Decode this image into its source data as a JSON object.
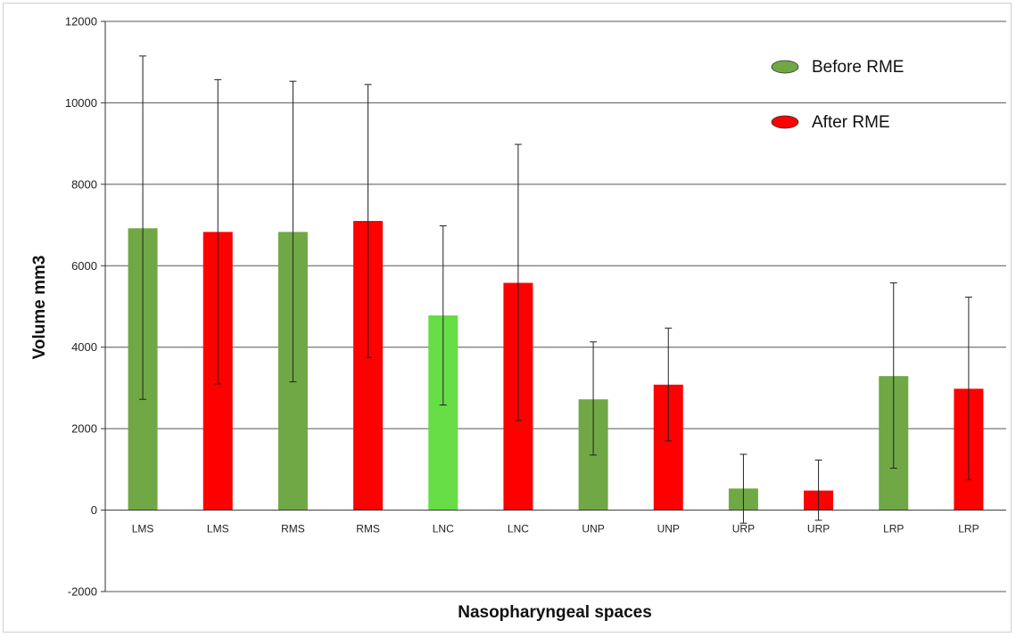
{
  "chart_data": {
    "type": "bar",
    "title": "",
    "xlabel": "Nasopharyngeal spaces",
    "ylabel": "Volume mm3",
    "ylim": [
      -2000,
      12000
    ],
    "yticks": [
      -2000,
      0,
      2000,
      4000,
      6000,
      8000,
      10000,
      12000
    ],
    "grid": true,
    "legend_position": "top-right",
    "legend": [
      {
        "name": "Before RME",
        "color": "#70a845"
      },
      {
        "name": "After RME",
        "color": "#ff0000"
      }
    ],
    "categories": [
      "LMS",
      "LMS",
      "RMS",
      "RMS",
      "LNC",
      "LNC",
      "UNP",
      "UNP",
      "URP",
      "URP",
      "LRP",
      "LRP"
    ],
    "values": [
      6920,
      6830,
      6830,
      7100,
      4780,
      5580,
      2720,
      3080,
      530,
      480,
      3290,
      2980
    ],
    "error_low": [
      2720,
      3100,
      3150,
      3750,
      2580,
      2200,
      1350,
      1700,
      -320,
      -250,
      1030,
      750
    ],
    "error_high": [
      11150,
      10570,
      10530,
      10450,
      6980,
      8980,
      4130,
      4470,
      1370,
      1230,
      5580,
      5230
    ],
    "bar_colors": [
      "#70a845",
      "#ff0000",
      "#70a845",
      "#ff0000",
      "#66dd44",
      "#ff0000",
      "#70a845",
      "#ff0000",
      "#70a845",
      "#ff0000",
      "#70a845",
      "#ff0000"
    ],
    "bar_groups": [
      "Before RME",
      "After RME",
      "Before RME",
      "After RME",
      "Before RME",
      "After RME",
      "Before RME",
      "After RME",
      "Before RME",
      "After RME",
      "Before RME",
      "After RME"
    ]
  }
}
